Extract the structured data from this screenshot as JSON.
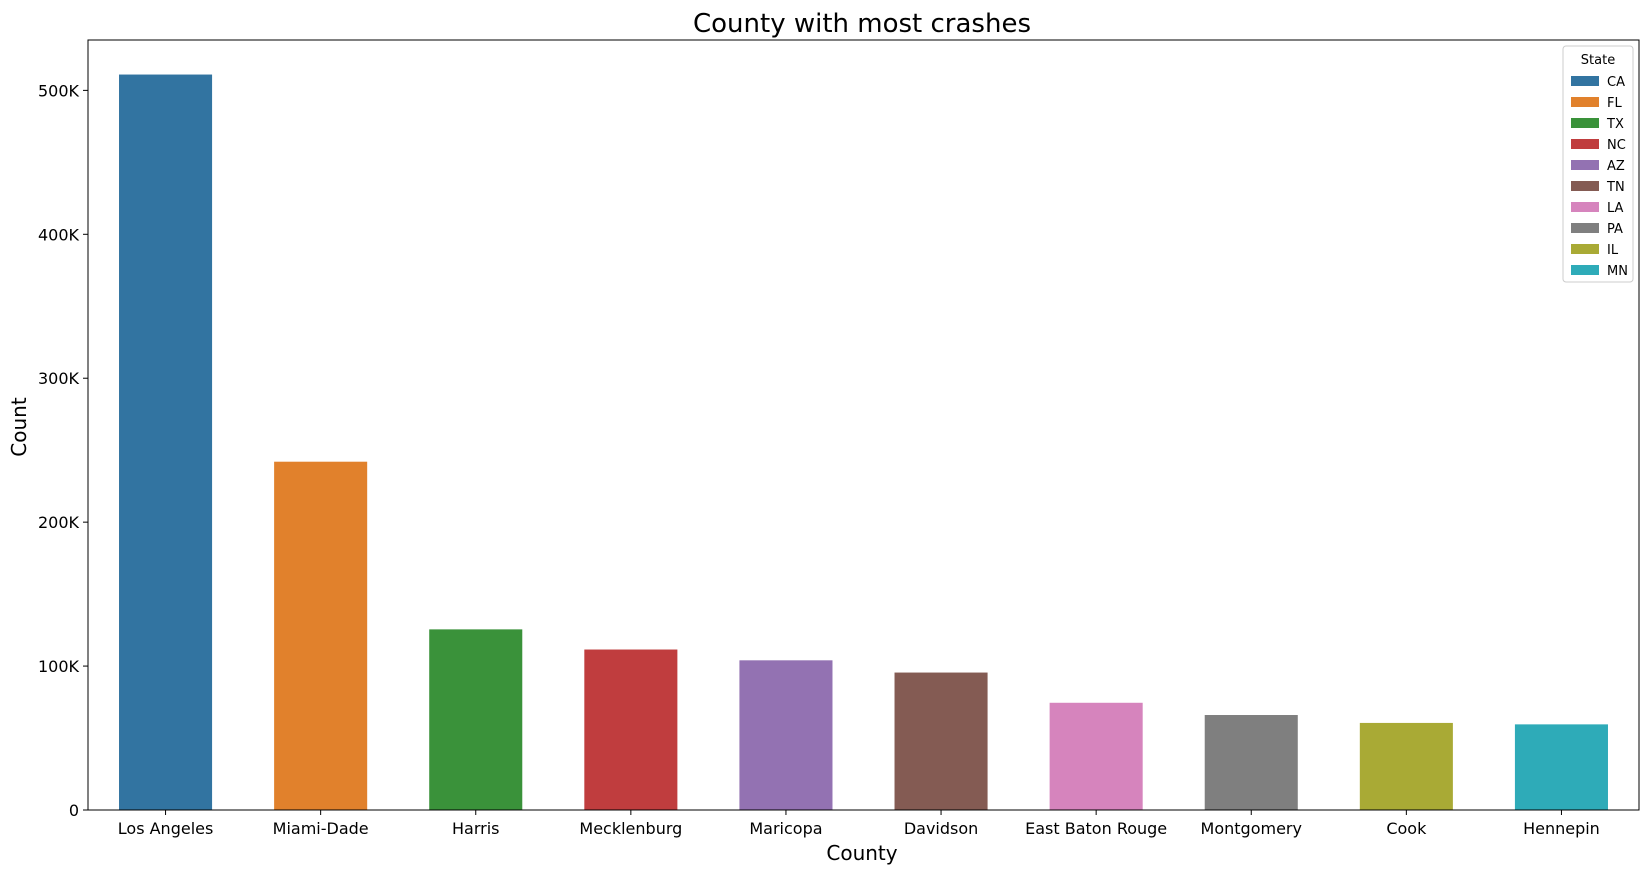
{
  "chart_data": {
    "type": "bar",
    "title": "County with most crashes",
    "xlabel": "County",
    "ylabel": "Count",
    "categories": [
      "Los Angeles",
      "Miami-Dade",
      "Harris",
      "Mecklenburg",
      "Maricopa",
      "Davidson",
      "East Baton Rouge",
      "Montgomery",
      "Cook",
      "Hennepin"
    ],
    "values": [
      511000,
      242000,
      125500,
      111500,
      104000,
      95500,
      74500,
      66000,
      60500,
      59500
    ],
    "states": [
      "CA",
      "FL",
      "TX",
      "NC",
      "AZ",
      "TN",
      "LA",
      "PA",
      "IL",
      "MN"
    ],
    "colors": [
      "#3274a1",
      "#e1812c",
      "#3a923a",
      "#c03d3e",
      "#9372b2",
      "#845b53",
      "#d684bd",
      "#7f7f7f",
      "#a9aa35",
      "#2eabb8"
    ],
    "ylim": [
      0,
      535000
    ],
    "yticks": [
      0,
      100000,
      200000,
      300000,
      400000,
      500000
    ],
    "ytick_labels": [
      "0",
      "100K",
      "200K",
      "300K",
      "400K",
      "500K"
    ],
    "grid": false,
    "legend": {
      "title": "State",
      "position": "top-right",
      "entries": [
        "CA",
        "FL",
        "TX",
        "NC",
        "AZ",
        "TN",
        "LA",
        "PA",
        "IL",
        "MN"
      ]
    }
  }
}
